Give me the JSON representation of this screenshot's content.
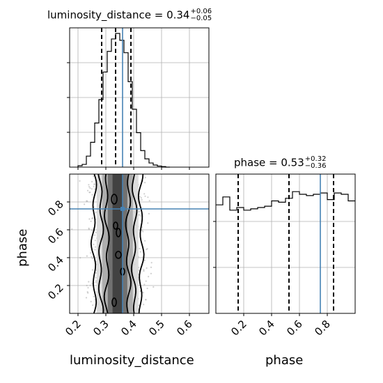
{
  "chart_data": [
    {
      "panel": "top-left",
      "type": "histogram",
      "parameter": "luminosity_distance",
      "title_param": "luminosity_distance",
      "title_value": "0.34",
      "title_upper": "+0.06",
      "title_lower": "−0.05",
      "truth": 0.36,
      "quantiles": [
        0.285,
        0.335,
        0.39
      ],
      "xlim": [
        0.17,
        0.67
      ],
      "bins": [
        0.2,
        0.215,
        0.23,
        0.245,
        0.26,
        0.275,
        0.29,
        0.305,
        0.32,
        0.335,
        0.35,
        0.365,
        0.38,
        0.395,
        0.41,
        0.425,
        0.44,
        0.455,
        0.47,
        0.485,
        0.5,
        0.515,
        0.53
      ],
      "counts": [
        0.01,
        0.02,
        0.08,
        0.18,
        0.32,
        0.49,
        0.69,
        0.84,
        0.93,
        0.97,
        0.92,
        0.83,
        0.62,
        0.42,
        0.25,
        0.12,
        0.06,
        0.03,
        0.015,
        0.008,
        0.004,
        0.0
      ],
      "grid": true
    },
    {
      "panel": "bottom-left",
      "type": "contour-2d",
      "xparam": "luminosity_distance",
      "yparam": "phase",
      "truth_x": 0.36,
      "truth_y": 0.75,
      "xlim": [
        0.17,
        0.67
      ],
      "ylim": [
        0.0,
        1.0
      ],
      "xticks": [
        "0.2",
        "0.3",
        "0.4",
        "0.5",
        "0.6"
      ],
      "yticks": [
        "0.2",
        "0.4",
        "0.6",
        "0.8"
      ],
      "xlabel": "luminosity_distance",
      "ylabel": "phase",
      "grid": true
    },
    {
      "panel": "bottom-right",
      "type": "histogram",
      "parameter": "phase",
      "title_param": "phase",
      "title_value": "0.53",
      "title_upper": "+0.32",
      "title_lower": "−0.36",
      "truth": 0.75,
      "quantiles": [
        0.16,
        0.525,
        0.845
      ],
      "xlim": [
        0.0,
        1.0
      ],
      "xticks": [
        "0.2",
        "0.4",
        "0.6",
        "0.8"
      ],
      "xlabel": "phase",
      "bins": [
        0.0,
        0.05,
        0.1,
        0.15,
        0.2,
        0.25,
        0.3,
        0.35,
        0.4,
        0.45,
        0.5,
        0.55,
        0.6,
        0.65,
        0.7,
        0.75,
        0.8,
        0.85,
        0.9,
        0.95,
        1.0
      ],
      "counts": [
        0.82,
        0.88,
        0.78,
        0.8,
        0.78,
        0.79,
        0.8,
        0.81,
        0.85,
        0.84,
        0.87,
        0.92,
        0.9,
        0.89,
        0.9,
        0.91,
        0.86,
        0.91,
        0.9,
        0.85
      ],
      "grid": true
    }
  ],
  "colors": {
    "truth": "#4682b4",
    "hist": "#000000",
    "grid": "#b0b0b0",
    "points": "#aaaaaa"
  }
}
